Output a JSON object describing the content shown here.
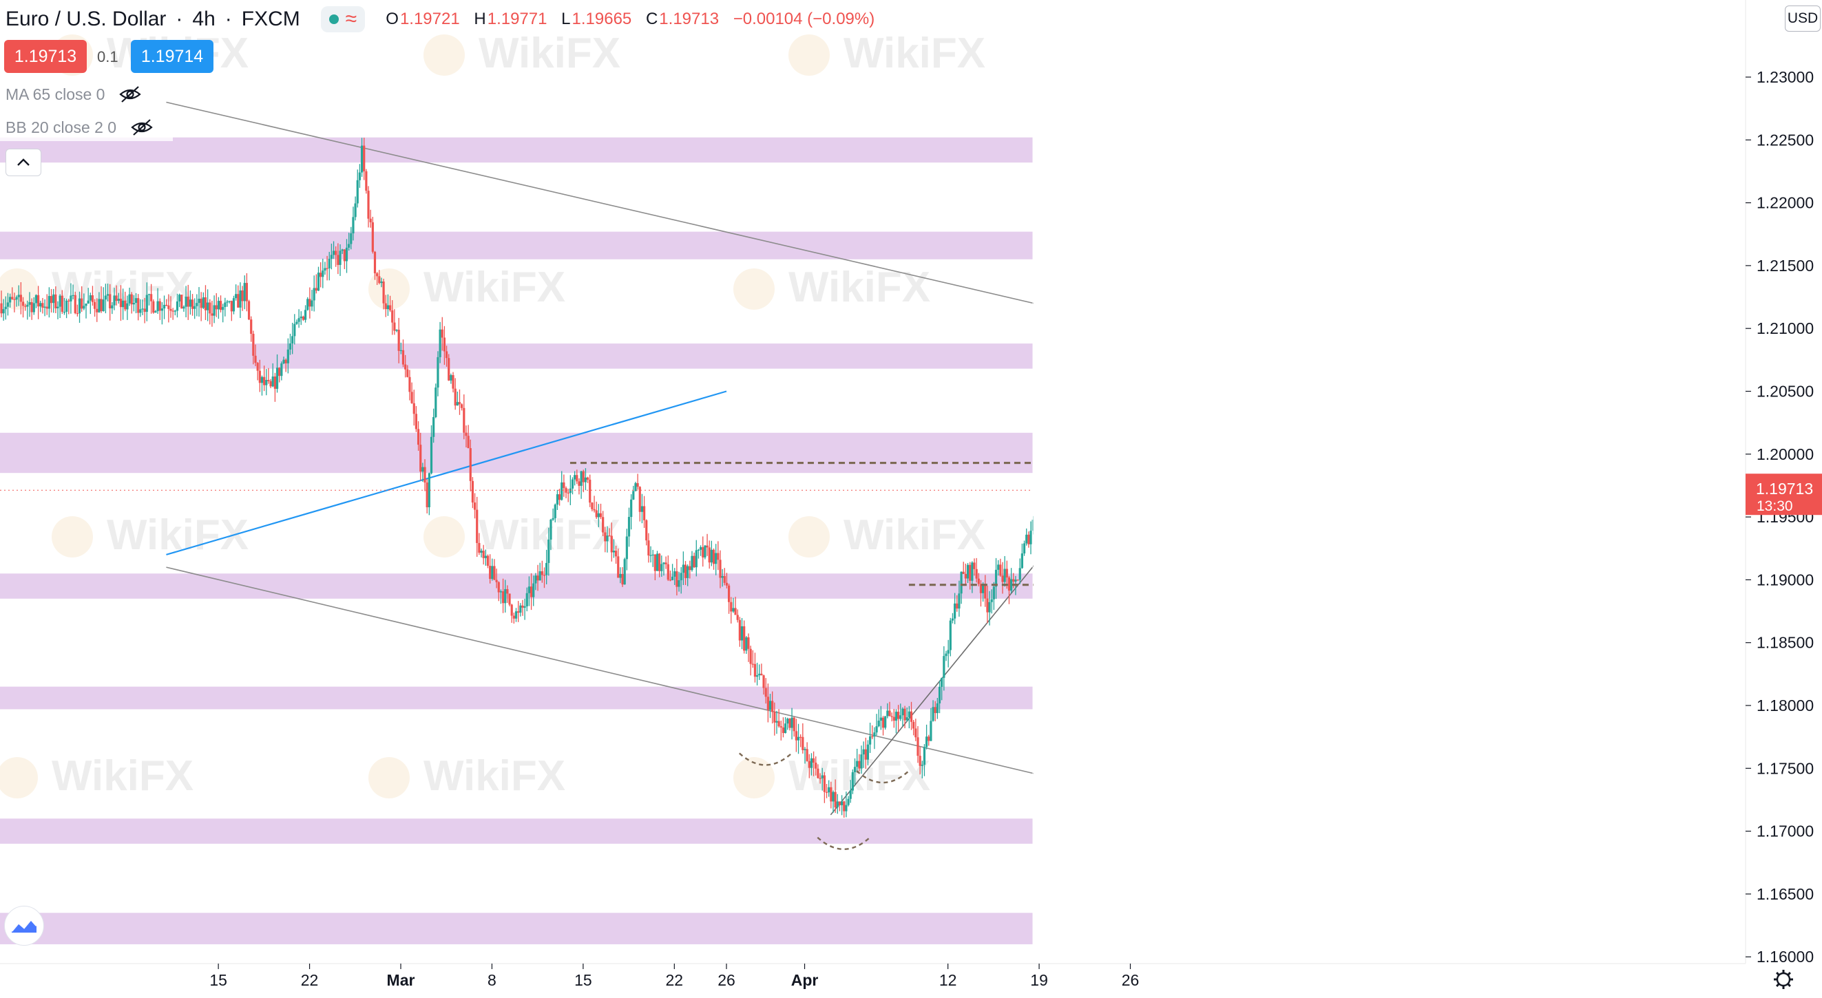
{
  "header": {
    "symbol": "Euro / U.S. Dollar",
    "timeframe": "4h",
    "broker": "FXCM",
    "ohlc": {
      "o_label": "O",
      "o": "1.19721",
      "h_label": "H",
      "h": "1.19771",
      "l_label": "L",
      "l": "1.19665",
      "c_label": "C",
      "c": "1.19713",
      "change": "−0.00104 (−0.09%)"
    }
  },
  "quote": {
    "sell": "1.19713",
    "spread": "0.1",
    "buy": "1.19714"
  },
  "indicators": {
    "ma": "MA 65 close 0",
    "bb": "BB 20 close 2 0"
  },
  "currency": "USD",
  "last_price": {
    "value": "1.19713",
    "countdown": "13:30"
  },
  "watermark": "WikiFX",
  "colors": {
    "up": "#26a69a",
    "down": "#ef5350",
    "zone": "#e1c6ea",
    "blue_line": "#2196f3",
    "channel": "#8c8c8c",
    "annotation": "#7d6a55",
    "last_price": "#ef5350"
  },
  "icons": [
    "eye-off-icon",
    "chevron-up-icon",
    "tradingview-logo-icon",
    "settings-gear-icon",
    "live-status-dot-icon",
    "replay-wave-icon"
  ],
  "chart_data": {
    "type": "candlestick",
    "title": "Euro / U.S. Dollar",
    "interval": "4h",
    "ylim": [
      1.16,
      1.234
    ],
    "y_ticks": [
      "1.23000",
      "1.22500",
      "1.22000",
      "1.21500",
      "1.21000",
      "1.20500",
      "1.20000",
      "1.19500",
      "1.19000",
      "1.18500",
      "1.18000",
      "1.17500",
      "1.17000",
      "1.16500",
      "1.16000"
    ],
    "x_ticks": [
      "15",
      "22",
      "Mar",
      "8",
      "15",
      "22",
      "26",
      "Apr",
      "12",
      "19",
      "26"
    ],
    "x_tick_dates": [
      "2021-02-15",
      "2021-02-22",
      "2021-03-01",
      "2021-03-08",
      "2021-03-15",
      "2021-03-22",
      "2021-03-26",
      "2021-04-01",
      "2021-04-12",
      "2021-04-19",
      "2021-04-26"
    ],
    "grid": false,
    "price_path": [
      [
        "2021-02-11",
        1.212
      ],
      [
        "2021-02-16",
        1.2115
      ],
      [
        "2021-02-17",
        1.213
      ],
      [
        "2021-02-18",
        1.206
      ],
      [
        "2021-02-19",
        1.205
      ],
      [
        "2021-02-23",
        1.215
      ],
      [
        "2021-02-25",
        1.216
      ],
      [
        "2021-02-26",
        1.224
      ],
      [
        "2021-02-27",
        1.215
      ],
      [
        "2021-03-01",
        1.208
      ],
      [
        "2021-03-02",
        1.203
      ],
      [
        "2021-03-03",
        1.196
      ],
      [
        "2021-03-04",
        1.21
      ],
      [
        "2021-03-05",
        1.205
      ],
      [
        "2021-03-06",
        1.202
      ],
      [
        "2021-03-07",
        1.192
      ],
      [
        "2021-03-10",
        1.187
      ],
      [
        "2021-03-12",
        1.191
      ],
      [
        "2021-03-13",
        1.197
      ],
      [
        "2021-03-15",
        1.1985
      ],
      [
        "2021-03-16",
        1.195
      ],
      [
        "2021-03-17",
        1.193
      ],
      [
        "2021-03-18",
        1.19
      ],
      [
        "2021-03-19",
        1.1985
      ],
      [
        "2021-03-20",
        1.192
      ],
      [
        "2021-03-22",
        1.19
      ],
      [
        "2021-03-24",
        1.192
      ],
      [
        "2021-03-25",
        1.192
      ],
      [
        "2021-03-27",
        1.186
      ],
      [
        "2021-03-29",
        1.181
      ],
      [
        "2021-03-30",
        1.178
      ],
      [
        "2021-03-31",
        1.179
      ],
      [
        "2021-04-01",
        1.176
      ],
      [
        "2021-04-03",
        1.173
      ],
      [
        "2021-04-04",
        1.1715
      ],
      [
        "2021-04-05",
        1.175
      ],
      [
        "2021-04-07",
        1.179
      ],
      [
        "2021-04-09",
        1.179
      ],
      [
        "2021-04-10",
        1.175
      ],
      [
        "2021-04-11",
        1.18
      ],
      [
        "2021-04-12",
        1.185
      ],
      [
        "2021-04-13",
        1.19
      ],
      [
        "2021-04-14",
        1.191
      ],
      [
        "2021-04-15",
        1.188
      ],
      [
        "2021-04-16",
        1.191
      ],
      [
        "2021-04-17",
        1.189
      ],
      [
        "2021-04-18",
        1.193
      ],
      [
        "2021-04-19",
        1.196
      ],
      [
        "2021-04-20",
        1.1985
      ],
      [
        "2021-04-21",
        1.1965
      ],
      [
        "2021-04-22",
        1.1985
      ],
      [
        "2021-04-23",
        1.1971
      ]
    ],
    "last_close": 1.19713,
    "horizontal_zones": [
      [
        1.2232,
        1.2252
      ],
      [
        1.2155,
        1.2177
      ],
      [
        1.2068,
        1.2088
      ],
      [
        1.1985,
        1.2017
      ],
      [
        1.1885,
        1.1905
      ],
      [
        1.1797,
        1.1815
      ],
      [
        1.169,
        1.171
      ],
      [
        1.161,
        1.1635
      ]
    ],
    "dashed_levels": [
      {
        "y": 1.1993,
        "from": "2021-03-14",
        "to": "2021-04-26"
      },
      {
        "y": 1.1896,
        "from": "2021-04-09",
        "to": "2021-04-22"
      }
    ],
    "trendlines": [
      {
        "name": "channel-upper",
        "from": [
          "2021-02-11",
          1.228
        ],
        "to": [
          "2021-04-29",
          1.2095
        ]
      },
      {
        "name": "channel-lower",
        "from": [
          "2021-02-11",
          1.191
        ],
        "to": [
          "2021-04-23",
          1.1735
        ]
      },
      {
        "name": "blue-trendline",
        "from": [
          "2021-02-11",
          1.192
        ],
        "to": [
          "2021-03-26",
          1.205
        ]
      },
      {
        "name": "ascending-support",
        "from": [
          "2021-04-03",
          1.1713
        ],
        "to": [
          "2021-04-24",
          1.198
        ]
      }
    ]
  }
}
